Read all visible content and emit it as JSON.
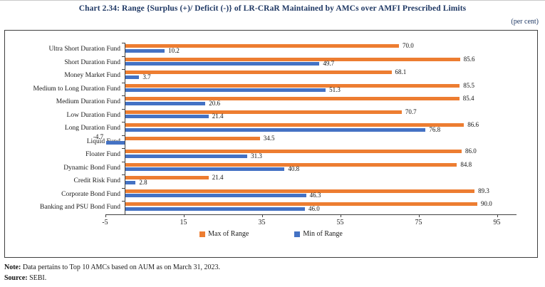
{
  "title": "Chart 2.34: Range {Surplus (+)/ Deficit (-)} of LR-CRaR Maintained by AMCs over AMFI Prescribed Limits",
  "unit_label": "(per cent)",
  "chart_data": {
    "type": "bar",
    "orientation": "horizontal",
    "title": "Chart 2.34: Range {Surplus (+)/ Deficit (-)} of LR-CRaR Maintained by AMCs over AMFI Prescribed Limits",
    "unit": "per cent",
    "categories": [
      "Ultra Short Duration Fund",
      "Short Duration Fund",
      "Money Market Fund",
      "Medium to Long Duration Fund",
      "Medium Duration Fund",
      "Low Duration Fund",
      "Long Duration Fund",
      "Liquid Fund",
      "Floater Fund",
      "Dynamic Bond Fund",
      "Credit Risk Fund",
      "Corporate Bond Fund",
      "Banking and PSU Bond Fund"
    ],
    "series": [
      {
        "name": "Max of Range",
        "color": "#ED7D31",
        "values": [
          70.0,
          85.6,
          68.1,
          85.5,
          85.4,
          70.7,
          86.6,
          34.5,
          86.0,
          84.8,
          21.4,
          89.3,
          90.0
        ]
      },
      {
        "name": "Min of Range",
        "color": "#4472C4",
        "values": [
          10.2,
          49.7,
          3.7,
          51.3,
          20.6,
          21.4,
          76.8,
          -4.7,
          31.3,
          40.8,
          2.8,
          46.3,
          46.0
        ]
      }
    ],
    "x_axis": {
      "min": -5,
      "max": 100,
      "ticks": [
        -5,
        15,
        35,
        55,
        75,
        95
      ]
    },
    "grid": false,
    "legend_position": "bottom",
    "value_labels": true
  },
  "note": {
    "label": "Note:",
    "text": " Data pertains to Top 10 AMCs based on AUM as on March 31, 2023."
  },
  "source": {
    "label": "Source:",
    "text": " SEBI."
  }
}
